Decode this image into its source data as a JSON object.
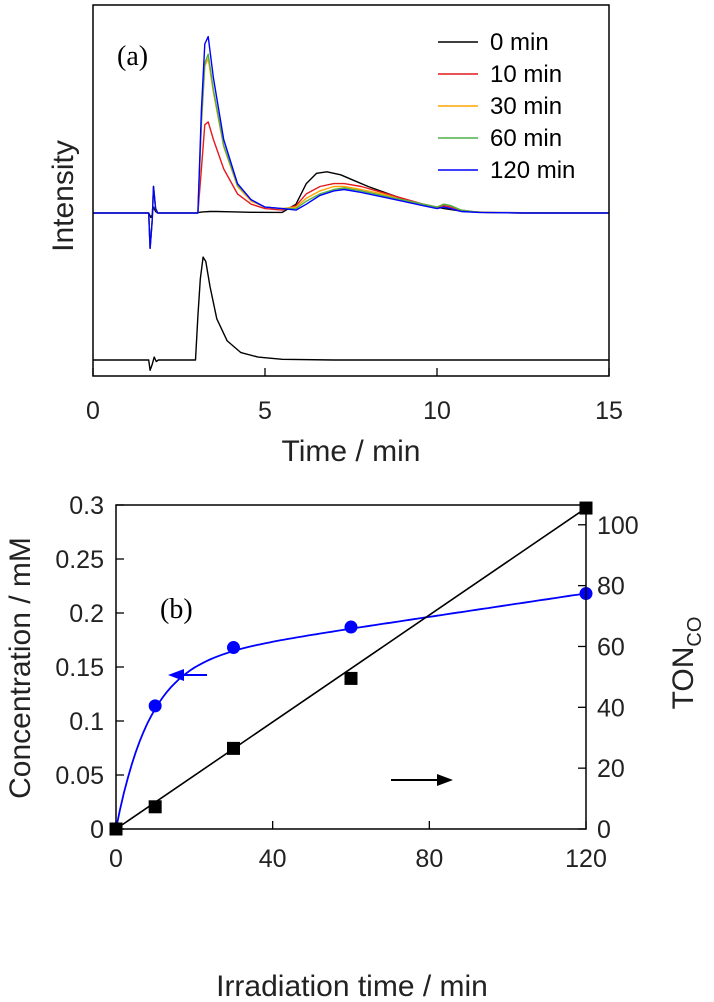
{
  "chart_data": [
    {
      "panel": "a",
      "type": "line",
      "panel_label": "(a)",
      "xlabel": "Time / min",
      "ylabel": "Intensity",
      "xlim": [
        0,
        15
      ],
      "xticks": [
        "0",
        "5",
        "10",
        "15"
      ],
      "legend_position": "top-right",
      "grid": false,
      "series": [
        {
          "name": "0 min",
          "color": "#000000",
          "x": [
            0,
            1.62,
            1.68,
            1.72,
            1.76,
            1.82,
            1.88,
            2.2,
            2.9,
            3.05,
            3.15,
            3.25,
            3.4,
            3.6,
            4.0,
            4.6,
            5.5,
            5.9,
            6.2,
            6.5,
            6.8,
            7.2,
            7.6,
            8.0,
            8.6,
            9.2,
            9.8,
            10.2,
            10.8,
            11.5,
            12.5,
            13.5,
            15
          ],
          "y": [
            0,
            0,
            -0.03,
            -0.01,
            0.04,
            0.01,
            0,
            0,
            0,
            0.003,
            0.006,
            0.008,
            0.01,
            0.01,
            0.008,
            0.005,
            0.004,
            0.06,
            0.2,
            0.27,
            0.28,
            0.26,
            0.22,
            0.18,
            0.13,
            0.08,
            0.05,
            0.03,
            0.01,
            0.004,
            0.002,
            0,
            0
          ]
        },
        {
          "name": "10 min",
          "color": "#e41a1c",
          "x": [
            0,
            1.62,
            1.66,
            1.72,
            1.76,
            1.82,
            1.88,
            2.2,
            3.05,
            3.15,
            3.25,
            3.35,
            3.5,
            3.8,
            4.2,
            4.6,
            5.0,
            5.5,
            5.9,
            6.2,
            6.6,
            7.0,
            7.3,
            7.8,
            8.4,
            9.0,
            9.6,
            10.0,
            10.2,
            10.4,
            10.7,
            11.2,
            12.5,
            15
          ],
          "y": [
            0,
            0,
            -0.24,
            -0.05,
            0.18,
            0.03,
            0,
            0,
            0,
            0.3,
            0.6,
            0.62,
            0.5,
            0.3,
            0.13,
            0.06,
            0.03,
            0.02,
            0.05,
            0.13,
            0.18,
            0.2,
            0.2,
            0.18,
            0.14,
            0.1,
            0.06,
            0.04,
            0.05,
            0.04,
            0.02,
            0.005,
            0,
            0
          ]
        },
        {
          "name": "30 min",
          "color": "#ffa500",
          "x": [
            0,
            1.62,
            1.66,
            1.72,
            1.76,
            1.82,
            1.88,
            2.2,
            3.05,
            3.15,
            3.25,
            3.35,
            3.5,
            3.8,
            4.2,
            4.6,
            5.0,
            5.5,
            5.9,
            6.2,
            6.6,
            7.0,
            7.3,
            7.8,
            8.4,
            9.0,
            9.6,
            10.0,
            10.2,
            10.4,
            10.7,
            11.2,
            12.5,
            15
          ],
          "y": [
            0,
            0,
            -0.24,
            -0.05,
            0.18,
            0.03,
            0,
            0,
            0,
            0.6,
            1.0,
            1.05,
            0.82,
            0.45,
            0.18,
            0.08,
            0.04,
            0.03,
            0.04,
            0.1,
            0.15,
            0.18,
            0.18,
            0.16,
            0.13,
            0.09,
            0.06,
            0.04,
            0.06,
            0.05,
            0.02,
            0.005,
            0,
            0
          ]
        },
        {
          "name": "60 min",
          "color": "#4daf4a",
          "x": [
            0,
            1.62,
            1.66,
            1.72,
            1.76,
            1.82,
            1.88,
            2.2,
            3.05,
            3.15,
            3.25,
            3.35,
            3.5,
            3.8,
            4.2,
            4.6,
            5.0,
            5.5,
            5.9,
            6.2,
            6.6,
            7.0,
            7.3,
            7.8,
            8.4,
            9.0,
            9.6,
            10.0,
            10.2,
            10.4,
            10.7,
            11.2,
            12.5,
            15
          ],
          "y": [
            0,
            0,
            -0.24,
            -0.05,
            0.18,
            0.03,
            0,
            0,
            0,
            0.62,
            1.02,
            1.08,
            0.84,
            0.46,
            0.19,
            0.09,
            0.04,
            0.03,
            0.03,
            0.08,
            0.13,
            0.16,
            0.17,
            0.15,
            0.12,
            0.09,
            0.06,
            0.04,
            0.06,
            0.05,
            0.02,
            0.005,
            0,
            0
          ]
        },
        {
          "name": "120 min",
          "color": "#0000ff",
          "x": [
            0,
            1.62,
            1.66,
            1.72,
            1.76,
            1.82,
            1.88,
            2.2,
            3.05,
            3.15,
            3.25,
            3.35,
            3.5,
            3.8,
            4.2,
            4.6,
            5.0,
            5.5,
            5.9,
            6.2,
            6.6,
            7.0,
            7.3,
            7.8,
            8.4,
            9.0,
            9.6,
            10.0,
            10.2,
            10.4,
            10.7,
            11.2,
            12.5,
            15
          ],
          "y": [
            0,
            0,
            -0.24,
            -0.05,
            0.18,
            0.03,
            0,
            0,
            0,
            0.7,
            1.15,
            1.2,
            0.92,
            0.5,
            0.2,
            0.09,
            0.04,
            0.03,
            0.02,
            0.06,
            0.12,
            0.15,
            0.16,
            0.14,
            0.11,
            0.08,
            0.05,
            0.03,
            0.04,
            0.03,
            0.01,
            0.004,
            0,
            0
          ]
        },
        {
          "name": "",
          "color": "#000000",
          "x": [
            0,
            1.62,
            1.66,
            1.72,
            1.78,
            1.84,
            1.9,
            2.2,
            2.98,
            3.05,
            3.12,
            3.2,
            3.28,
            3.4,
            3.6,
            3.9,
            4.3,
            4.8,
            5.5,
            7,
            15
          ],
          "y": [
            -1.0,
            -1.0,
            -1.07,
            -1.03,
            -0.98,
            -1.01,
            -1.0,
            -1.0,
            -1.0,
            -0.7,
            -0.45,
            -0.3,
            -0.33,
            -0.5,
            -0.72,
            -0.87,
            -0.95,
            -0.98,
            -0.995,
            -1.0,
            -1.0
          ]
        }
      ]
    },
    {
      "panel": "b",
      "type": "scatter",
      "panel_label": "(b)",
      "xlabel": "Irradiation time / min",
      "ylabel_left": "Concentration / mM",
      "ylabel_right_main": "TON",
      "ylabel_right_sub": "CO",
      "xlim": [
        0,
        120
      ],
      "ylim_left": [
        0,
        0.3
      ],
      "ylim_right": [
        0,
        106.5
      ],
      "xticks": [
        "0",
        "40",
        "80",
        "120"
      ],
      "yticks_left": [
        "0",
        "0.05",
        "0.1",
        "0.15",
        "0.2",
        "0.25",
        "0.3"
      ],
      "yticks_right": [
        "0",
        "20",
        "40",
        "60",
        "80",
        "100"
      ],
      "grid": false,
      "series": [
        {
          "axis": "left",
          "marker": "circle",
          "color": "#0000ff",
          "x": [
            0,
            10,
            30,
            60,
            120
          ],
          "y": [
            0,
            0.114,
            0.168,
            0.187,
            0.218
          ]
        },
        {
          "axis": "right",
          "marker": "square",
          "color": "#000000",
          "x": [
            0,
            10,
            30,
            60,
            120
          ],
          "y": [
            0,
            7.3,
            26.5,
            49.5,
            105.5
          ]
        }
      ],
      "arrows": [
        {
          "points_to": "left",
          "color": "#0000ff"
        },
        {
          "points_to": "right",
          "color": "#000000"
        }
      ]
    }
  ]
}
